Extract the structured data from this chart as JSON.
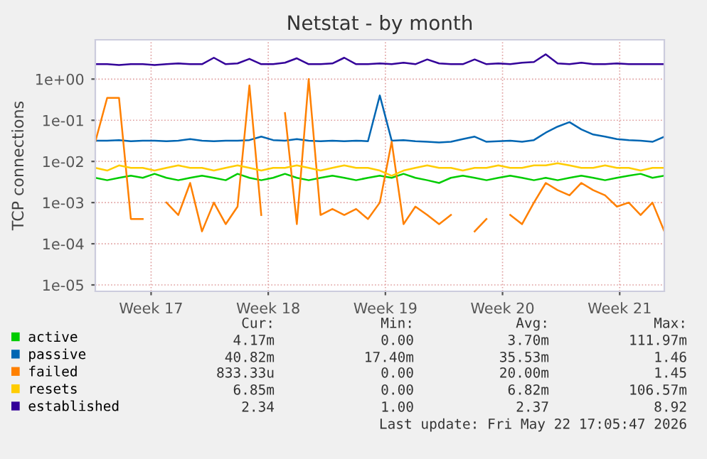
{
  "chart_data": {
    "type": "line",
    "title": "Netstat - by month",
    "ylabel": "TCP connections",
    "x": [
      "2026-04-18T16:00",
      "2026-04-19T09:00",
      "2026-04-20T02:00",
      "2026-04-20T19:00",
      "2026-04-21T12:00",
      "2026-04-22T05:00",
      "2026-04-22T22:00",
      "2026-04-23T15:00",
      "2026-04-24T08:00",
      "2026-04-25T01:00",
      "2026-04-25T18:00",
      "2026-04-26T11:00",
      "2026-04-27T04:00",
      "2026-04-27T21:00",
      "2026-04-28T14:00",
      "2026-04-29T07:00",
      "2026-04-30T00:00",
      "2026-04-30T17:00",
      "2026-05-01T10:00",
      "2026-05-02T03:00",
      "2026-05-02T20:00",
      "2026-05-03T13:00",
      "2026-05-04T06:00",
      "2026-05-04T23:00",
      "2026-05-05T16:00",
      "2026-05-06T09:00",
      "2026-05-07T02:00",
      "2026-05-07T19:00",
      "2026-05-08T12:00",
      "2026-05-09T05:00",
      "2026-05-09T22:00",
      "2026-05-10T15:00",
      "2026-05-11T08:00",
      "2026-05-12T01:00",
      "2026-05-12T18:00",
      "2026-05-13T11:00",
      "2026-05-14T04:00",
      "2026-05-14T21:00",
      "2026-05-15T14:00",
      "2026-05-16T07:00",
      "2026-05-17T00:00",
      "2026-05-17T17:00",
      "2026-05-18T10:00",
      "2026-05-19T03:00",
      "2026-05-19T20:00",
      "2026-05-20T13:00",
      "2026-05-21T06:00",
      "2026-05-21T23:00",
      "2026-05-22T16:00"
    ],
    "series": [
      {
        "name": "active",
        "color": "#00cc00",
        "values": [
          0.004,
          0.0035,
          0.004,
          0.0045,
          0.004,
          0.005,
          0.004,
          0.0035,
          0.004,
          0.0045,
          0.004,
          0.0035,
          0.005,
          0.004,
          0.0035,
          0.004,
          0.005,
          0.004,
          0.0035,
          0.004,
          0.0045,
          0.004,
          0.0035,
          0.004,
          0.0045,
          0.004,
          0.005,
          0.004,
          0.0035,
          0.003,
          0.004,
          0.0045,
          0.004,
          0.0035,
          0.004,
          0.0045,
          0.004,
          0.0035,
          0.004,
          0.0035,
          0.004,
          0.0045,
          0.004,
          0.0035,
          0.004,
          0.0045,
          0.005,
          0.004,
          0.0045
        ]
      },
      {
        "name": "passive",
        "color": "#0066b3",
        "values": [
          0.032,
          0.032,
          0.033,
          0.031,
          0.032,
          0.032,
          0.031,
          0.032,
          0.035,
          0.032,
          0.031,
          0.032,
          0.032,
          0.033,
          0.04,
          0.033,
          0.032,
          0.035,
          0.032,
          0.031,
          0.032,
          0.031,
          0.032,
          0.031,
          0.4,
          0.032,
          0.033,
          0.031,
          0.03,
          0.029,
          0.03,
          0.035,
          0.04,
          0.03,
          0.031,
          0.032,
          0.03,
          0.033,
          0.05,
          0.07,
          0.09,
          0.06,
          0.045,
          0.04,
          0.035,
          0.033,
          0.032,
          0.03,
          0.04
        ]
      },
      {
        "name": "failed",
        "color": "#ff8000",
        "values": [
          0.03,
          0.35,
          0.35,
          0.0004,
          0.0004,
          null,
          0.001,
          0.0005,
          0.003,
          0.0002,
          0.001,
          0.0003,
          0.0008,
          0.7,
          0.0005,
          null,
          0.15,
          0.0003,
          1.0,
          0.0005,
          0.0007,
          0.0005,
          0.0007,
          0.0004,
          0.001,
          0.03,
          0.0003,
          0.0008,
          0.0005,
          0.0003,
          0.0005,
          null,
          0.0002,
          0.0004,
          null,
          0.0005,
          0.0003,
          0.001,
          0.003,
          0.002,
          0.0015,
          0.003,
          0.002,
          0.0015,
          0.0008,
          0.001,
          0.0005,
          0.001,
          0.0002
        ]
      },
      {
        "name": "resets",
        "color": "#ffcc00",
        "values": [
          0.007,
          0.006,
          0.008,
          0.007,
          0.007,
          0.006,
          0.007,
          0.008,
          0.007,
          0.007,
          0.006,
          0.007,
          0.008,
          0.007,
          0.006,
          0.007,
          0.007,
          0.008,
          0.007,
          0.006,
          0.007,
          0.008,
          0.007,
          0.007,
          0.006,
          0.0045,
          0.006,
          0.007,
          0.008,
          0.007,
          0.007,
          0.006,
          0.007,
          0.007,
          0.008,
          0.007,
          0.007,
          0.008,
          0.008,
          0.009,
          0.008,
          0.007,
          0.007,
          0.008,
          0.007,
          0.007,
          0.006,
          0.007,
          0.007
        ]
      },
      {
        "name": "established",
        "color": "#330099",
        "values": [
          2.3,
          2.3,
          2.2,
          2.3,
          2.3,
          2.2,
          2.3,
          2.4,
          2.3,
          2.3,
          3.3,
          2.3,
          2.4,
          3.1,
          2.3,
          2.3,
          2.5,
          3.2,
          2.3,
          2.3,
          2.4,
          3.3,
          2.3,
          2.3,
          2.4,
          2.3,
          2.5,
          2.3,
          3.0,
          2.4,
          2.3,
          2.3,
          3.0,
          2.3,
          2.4,
          2.3,
          2.5,
          2.6,
          4.0,
          2.4,
          2.3,
          2.5,
          2.3,
          2.3,
          2.4,
          2.3,
          2.3,
          2.3,
          2.3
        ]
      }
    ],
    "xlim": [
      "2026-04-18T16:00",
      "2026-05-22T16:00"
    ],
    "xticks": [
      {
        "value": "2026-04-22",
        "label": "Week 17"
      },
      {
        "value": "2026-04-29",
        "label": "Week 18"
      },
      {
        "value": "2026-05-06",
        "label": "Week 19"
      },
      {
        "value": "2026-05-13",
        "label": "Week 20"
      },
      {
        "value": "2026-05-20",
        "label": "Week 21"
      }
    ],
    "ylim": [
      7e-06,
      9
    ],
    "log": "y",
    "yticks": [
      {
        "value": 1e-05,
        "label": "1e-05"
      },
      {
        "value": 0.0001,
        "label": "1e-04"
      },
      {
        "value": 0.001,
        "label": "1e-03"
      },
      {
        "value": 0.01,
        "label": "1e-02"
      },
      {
        "value": 0.1,
        "label": "1e-01"
      },
      {
        "value": 1,
        "label": "1e+00"
      }
    ],
    "grid": true,
    "legend": "bottom",
    "annotations": [
      "Cur:",
      "Min:",
      "Avg:",
      "Max:",
      "4.17m",
      "0.00",
      "3.70m",
      "111.97m",
      "40.82m",
      "17.40m",
      "35.53m",
      "1.46",
      "833.33u",
      "0.00",
      "20.00m",
      "1.45",
      "6.85m",
      "0.00",
      "6.82m",
      "106.57m",
      "2.34",
      "1.00",
      "2.37",
      "8.92",
      "Last update: Fri May 22 17:05:47 2026"
    ]
  }
}
